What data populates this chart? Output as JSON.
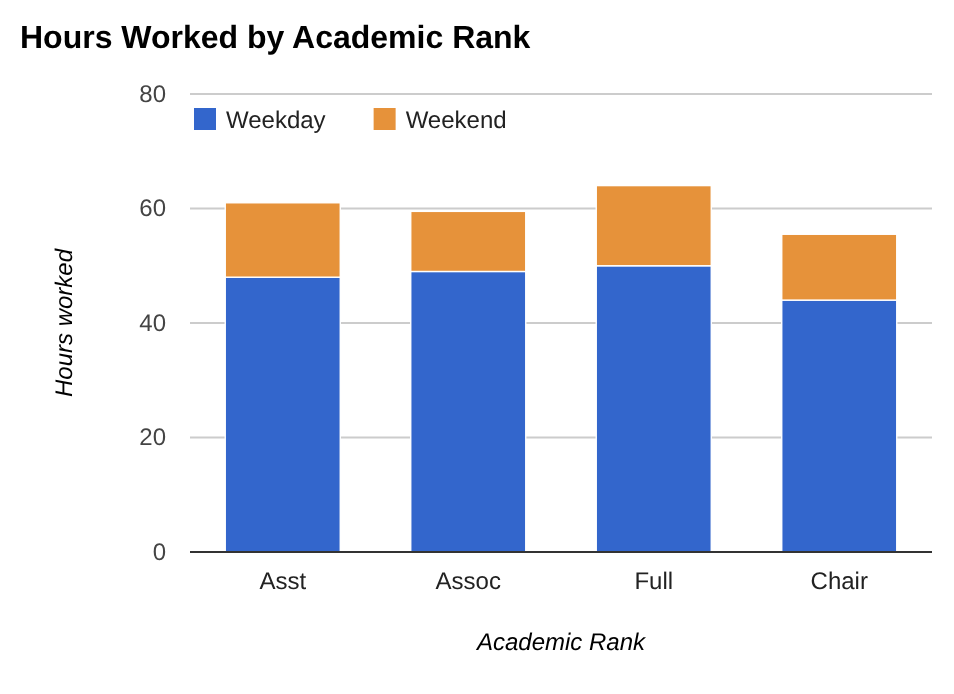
{
  "chart_data": {
    "type": "bar",
    "title": "Hours Worked by Academic Rank",
    "xlabel": "Academic Rank",
    "ylabel": "Hours worked",
    "categories": [
      "Asst",
      "Assoc",
      "Full",
      "Chair"
    ],
    "series": [
      {
        "name": "Weekday",
        "color": "#3366cc",
        "values": [
          48,
          49,
          50,
          44
        ]
      },
      {
        "name": "Weekend",
        "color": "#e6923a",
        "values": [
          13,
          10.5,
          14,
          11.5
        ]
      }
    ],
    "stacked": true,
    "ylim": [
      0,
      80
    ],
    "yticks": [
      0,
      20,
      40,
      60,
      80
    ],
    "grid": "y",
    "legend": "top left"
  }
}
